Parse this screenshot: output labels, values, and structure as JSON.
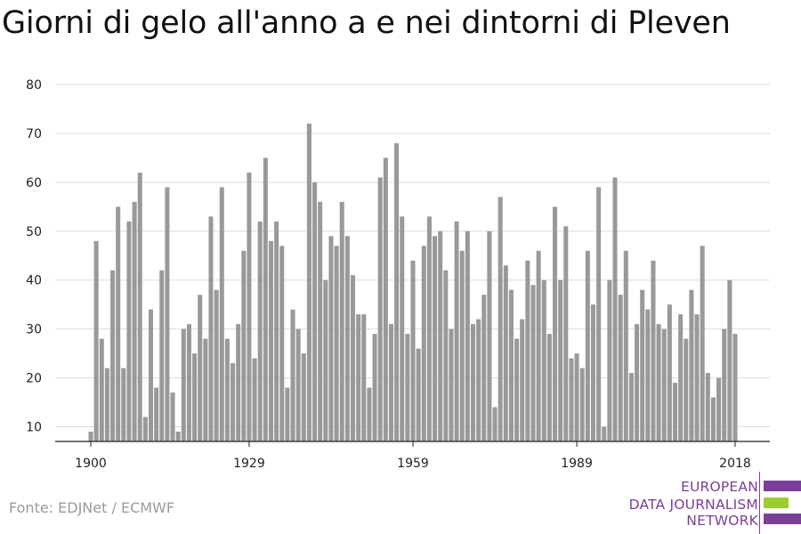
{
  "chart_data": {
    "type": "bar",
    "title": "Giorni di gelo all'anno a e nei dintorni di Pleven",
    "xlabel": "",
    "ylabel": "",
    "ylim": [
      7,
      80
    ],
    "yticks": [
      10,
      20,
      30,
      40,
      50,
      60,
      70,
      80
    ],
    "xticks": [
      1900,
      1929,
      1959,
      1989,
      2018
    ],
    "grid": true,
    "color": "#999999",
    "x": [
      1900,
      1901,
      1902,
      1903,
      1904,
      1905,
      1906,
      1907,
      1908,
      1909,
      1910,
      1911,
      1912,
      1913,
      1914,
      1915,
      1916,
      1917,
      1918,
      1919,
      1920,
      1921,
      1922,
      1923,
      1924,
      1925,
      1926,
      1927,
      1928,
      1929,
      1930,
      1931,
      1932,
      1933,
      1934,
      1935,
      1936,
      1937,
      1938,
      1939,
      1940,
      1941,
      1942,
      1943,
      1944,
      1945,
      1946,
      1947,
      1948,
      1949,
      1950,
      1951,
      1952,
      1953,
      1954,
      1955,
      1956,
      1957,
      1958,
      1959,
      1960,
      1961,
      1962,
      1963,
      1964,
      1965,
      1966,
      1967,
      1968,
      1969,
      1970,
      1971,
      1972,
      1973,
      1974,
      1975,
      1976,
      1977,
      1978,
      1979,
      1980,
      1981,
      1982,
      1983,
      1984,
      1985,
      1986,
      1987,
      1988,
      1989,
      1990,
      1991,
      1992,
      1993,
      1994,
      1995,
      1996,
      1997,
      1998,
      1999,
      2000,
      2001,
      2002,
      2003,
      2004,
      2005,
      2006,
      2007,
      2008,
      2009,
      2010,
      2011,
      2012,
      2013,
      2014,
      2015,
      2016,
      2017,
      2018
    ],
    "values": [
      9,
      48,
      28,
      22,
      42,
      55,
      22,
      52,
      56,
      62,
      12,
      34,
      18,
      42,
      59,
      17,
      9,
      30,
      31,
      25,
      37,
      28,
      53,
      38,
      59,
      28,
      23,
      31,
      46,
      62,
      24,
      52,
      65,
      48,
      52,
      47,
      18,
      34,
      30,
      25,
      72,
      60,
      56,
      40,
      49,
      47,
      56,
      49,
      41,
      33,
      33,
      18,
      29,
      61,
      65,
      31,
      68,
      53,
      29,
      44,
      26,
      47,
      53,
      49,
      50,
      42,
      30,
      52,
      46,
      50,
      31,
      32,
      37,
      50,
      14,
      57,
      43,
      38,
      28,
      32,
      44,
      39,
      46,
      40,
      29,
      55,
      40,
      51,
      24,
      25,
      22,
      46,
      35,
      59,
      10,
      40,
      61,
      37,
      46,
      21,
      31,
      38,
      34,
      44,
      31,
      30,
      35,
      19,
      33,
      28,
      38,
      33,
      47,
      21,
      16,
      20,
      30,
      40,
      29
    ]
  },
  "source": "Fonte: EDJNet / ECMWF",
  "logo": {
    "line1": "EUROPEAN",
    "line2": "DATA JOURNALISM",
    "line3": "NETWORK",
    "colors": {
      "purple": "#7a3f96",
      "green": "#9acd32"
    }
  }
}
